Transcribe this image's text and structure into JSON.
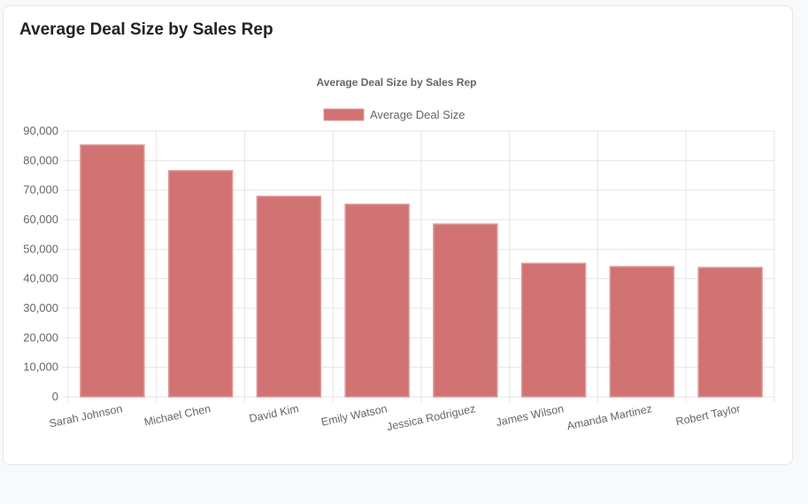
{
  "card": {
    "title": "Average Deal Size by Sales Rep"
  },
  "chart_data": {
    "type": "bar",
    "title": "Average Deal Size by Sales Rep",
    "categories": [
      "Sarah Johnson",
      "Michael Chen",
      "David Kim",
      "Emily Watson",
      "Jessica Rodriguez",
      "James Wilson",
      "Amanda Martinez",
      "Robert Taylor"
    ],
    "series": [
      {
        "name": "Average Deal Size",
        "values": [
          85300,
          76600,
          67900,
          65200,
          58500,
          45200,
          44100,
          43800
        ]
      }
    ],
    "ylim": [
      0,
      90000
    ],
    "yticks": [
      "0",
      "10,000",
      "20,000",
      "30,000",
      "40,000",
      "50,000",
      "60,000",
      "70,000",
      "80,000",
      "90,000"
    ],
    "grid": true,
    "legend": "top",
    "color": "#d07372"
  }
}
